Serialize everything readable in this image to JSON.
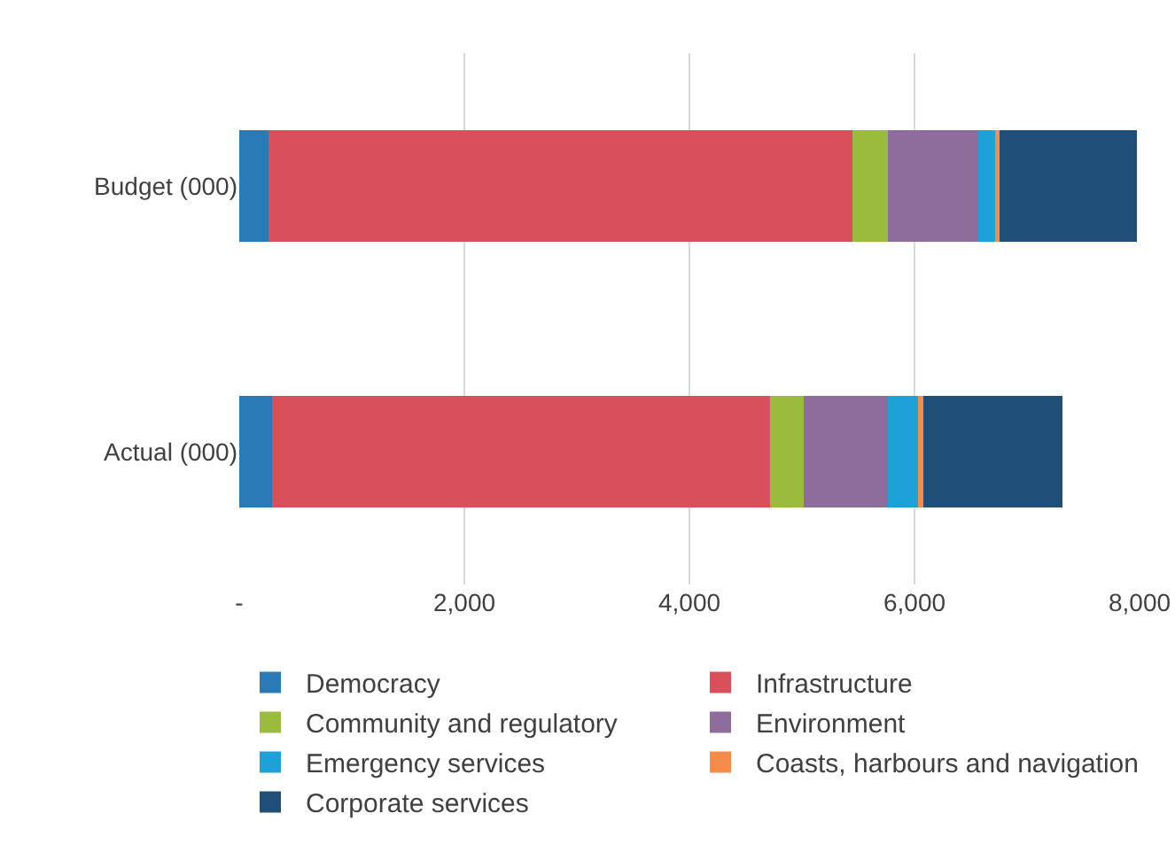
{
  "chart_data": {
    "type": "bar",
    "orientation": "horizontal",
    "stacked": true,
    "categories": [
      "Budget (000)",
      "Actual (000)"
    ],
    "series": [
      {
        "name": "Democracy",
        "color": "#2a7ab8",
        "values": [
          260,
          290
        ]
      },
      {
        "name": "Infrastructure",
        "color": "#d9505a",
        "values": [
          5190,
          4425
        ]
      },
      {
        "name": "Community and regulatory",
        "color": "#9bbb3c",
        "values": [
          315,
          300
        ]
      },
      {
        "name": "Environment",
        "color": "#8e6d9c",
        "values": [
          800,
          750
        ]
      },
      {
        "name": "Emergency services",
        "color": "#1ea0d8",
        "values": [
          150,
          280
        ]
      },
      {
        "name": "Coasts, harbours and navigation",
        "color": "#f58c4c",
        "values": [
          40,
          30
        ]
      },
      {
        "name": "Corporate services",
        "color": "#1f4e79",
        "values": [
          1220,
          1240
        ]
      }
    ],
    "xlim": [
      0,
      8000
    ],
    "xticks": [
      {
        "value": 0,
        "label": "-"
      },
      {
        "value": 2000,
        "label": "2,000"
      },
      {
        "value": 4000,
        "label": "4,000"
      },
      {
        "value": 6000,
        "label": "6,000"
      },
      {
        "value": 8000,
        "label": "8,000"
      }
    ],
    "grid": "x",
    "legend": "bottom"
  }
}
